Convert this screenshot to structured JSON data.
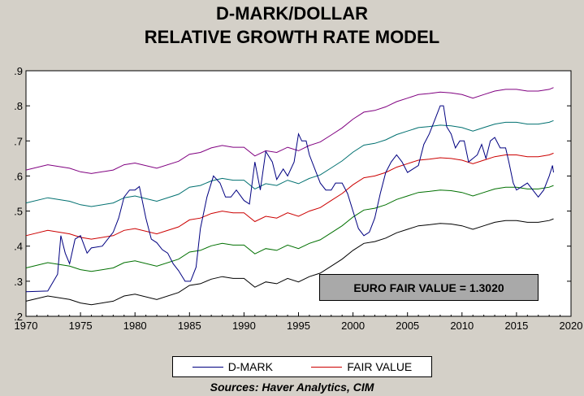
{
  "chart_data": {
    "type": "line",
    "title": "D-MARK/DOLLAR",
    "subtitle": "RELATIVE GROWTH RATE MODEL",
    "xlabel": "",
    "ylabel": "",
    "xlim": [
      1970,
      2020
    ],
    "ylim": [
      0.2,
      0.9
    ],
    "x_ticks": [
      "1970",
      "1975",
      "1980",
      "1985",
      "1990",
      "1995",
      "2000",
      "2005",
      "2010",
      "2015",
      "2020"
    ],
    "y_ticks": [
      ".2",
      ".3",
      ".4",
      ".5",
      ".6",
      ".7",
      ".8",
      ".9"
    ],
    "grid": false,
    "legend_position": "bottom",
    "legend": [
      {
        "label": "D-MARK",
        "color": "#000080"
      },
      {
        "label": "FAIR VALUE",
        "color": "#cc0000"
      }
    ],
    "annotation": "EURO FAIR VALUE = 1.3020",
    "source": "Sources:  Haver Analytics, CIM",
    "band_offsets": [
      -0.187,
      -0.092,
      0.093,
      0.187
    ],
    "band_colors": [
      "#000000",
      "#007000",
      "#007070",
      "#800080"
    ],
    "fair_value": {
      "x": [
        1970,
        1972,
        1974,
        1975,
        1976,
        1978,
        1979,
        1980,
        1982,
        1984,
        1985,
        1986,
        1987,
        1988,
        1989,
        1990,
        1991,
        1992,
        1993,
        1994,
        1995,
        1996,
        1997,
        1998,
        1999,
        2000,
        2001,
        2002,
        2003,
        2004,
        2005,
        2006,
        2007,
        2008,
        2009,
        2010,
        2011,
        2012,
        2013,
        2014,
        2015,
        2016,
        2017,
        2018,
        2018.4
      ],
      "y": [
        0.43,
        0.445,
        0.435,
        0.425,
        0.42,
        0.43,
        0.445,
        0.45,
        0.435,
        0.455,
        0.475,
        0.48,
        0.493,
        0.5,
        0.495,
        0.495,
        0.47,
        0.485,
        0.48,
        0.495,
        0.485,
        0.5,
        0.51,
        0.53,
        0.55,
        0.575,
        0.595,
        0.6,
        0.61,
        0.625,
        0.635,
        0.645,
        0.648,
        0.652,
        0.65,
        0.645,
        0.635,
        0.645,
        0.655,
        0.66,
        0.66,
        0.655,
        0.655,
        0.66,
        0.665
      ]
    },
    "series": [
      {
        "name": "D-MARK",
        "x": [
          1970,
          1972,
          1972.9,
          1973.2,
          1973.6,
          1974,
          1974.5,
          1975,
          1975.6,
          1976,
          1977,
          1978,
          1978.5,
          1979,
          1979.5,
          1980,
          1980.4,
          1981,
          1981.5,
          1982,
          1982.5,
          1983,
          1983.5,
          1984,
          1984.6,
          1985.1,
          1985.6,
          1986,
          1986.6,
          1987.2,
          1987.8,
          1988.3,
          1988.8,
          1989.3,
          1990,
          1990.5,
          1991,
          1991.5,
          1992,
          1992.6,
          1993,
          1993.6,
          1994,
          1994.6,
          1995,
          1995.3,
          1995.7,
          1996,
          1996.5,
          1997,
          1997.5,
          1998,
          1998.4,
          1999,
          1999.5,
          2000,
          2000.5,
          2001,
          2001.5,
          2002,
          2002.5,
          2003,
          2003.5,
          2004,
          2004.5,
          2005,
          2005.5,
          2006,
          2006.5,
          2007,
          2007.5,
          2008,
          2008.3,
          2008.6,
          2009,
          2009.4,
          2009.8,
          2010.2,
          2010.6,
          2011,
          2011.4,
          2011.8,
          2012.2,
          2012.6,
          2013,
          2013.5,
          2014,
          2014.3,
          2014.7,
          2015,
          2015.5,
          2016,
          2016.5,
          2017,
          2017.5,
          2018,
          2018.3,
          2018.4
        ],
        "y": [
          0.27,
          0.272,
          0.32,
          0.43,
          0.38,
          0.35,
          0.42,
          0.43,
          0.38,
          0.395,
          0.4,
          0.44,
          0.48,
          0.54,
          0.56,
          0.56,
          0.57,
          0.48,
          0.42,
          0.41,
          0.39,
          0.38,
          0.35,
          0.33,
          0.3,
          0.3,
          0.34,
          0.45,
          0.54,
          0.6,
          0.58,
          0.54,
          0.54,
          0.56,
          0.53,
          0.52,
          0.64,
          0.56,
          0.67,
          0.64,
          0.59,
          0.62,
          0.6,
          0.64,
          0.72,
          0.7,
          0.7,
          0.66,
          0.62,
          0.58,
          0.56,
          0.56,
          0.58,
          0.58,
          0.55,
          0.5,
          0.45,
          0.43,
          0.44,
          0.48,
          0.55,
          0.61,
          0.64,
          0.66,
          0.64,
          0.61,
          0.62,
          0.63,
          0.69,
          0.72,
          0.76,
          0.8,
          0.8,
          0.74,
          0.72,
          0.68,
          0.7,
          0.7,
          0.64,
          0.65,
          0.66,
          0.69,
          0.65,
          0.7,
          0.71,
          0.68,
          0.68,
          0.64,
          0.58,
          0.56,
          0.57,
          0.58,
          0.56,
          0.54,
          0.56,
          0.6,
          0.63,
          0.61
        ]
      }
    ]
  }
}
